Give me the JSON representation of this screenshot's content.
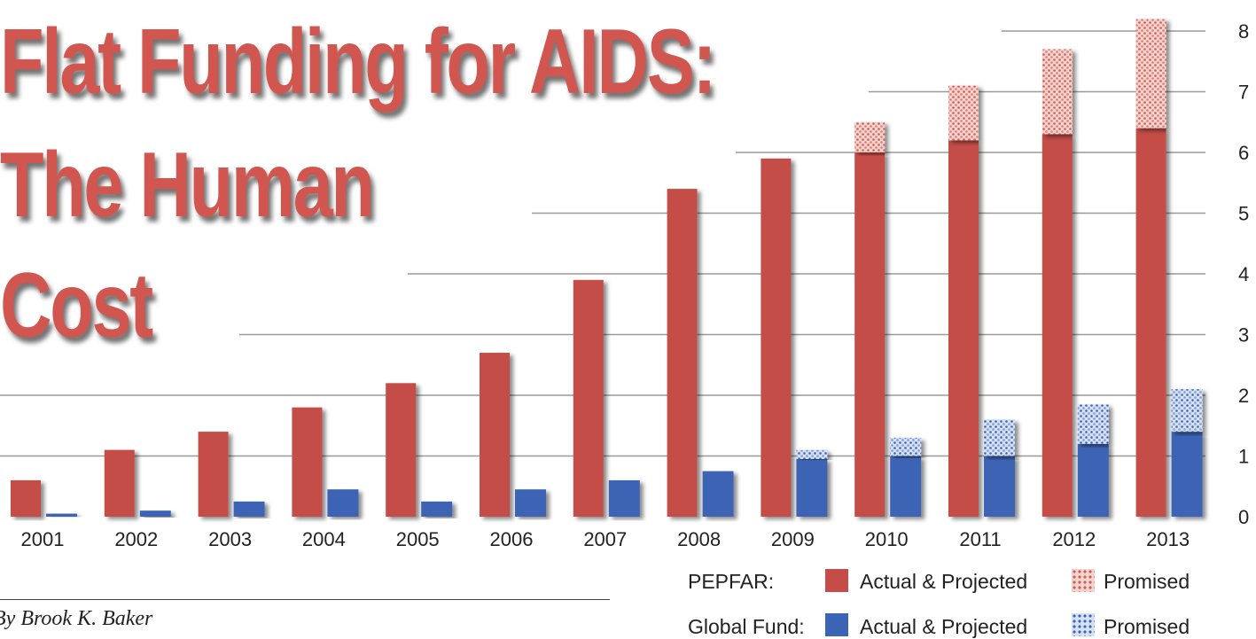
{
  "title": {
    "lines": [
      "Flat Funding for AIDS:",
      "The Human",
      "Cost"
    ]
  },
  "byline": "By Brook K. Baker",
  "colors": {
    "pepfar_actual": "#c44d47",
    "pepfar_promised": "#e07b73",
    "globalfund_actual": "#3c64b4",
    "globalfund_promised": "#6c8fd2",
    "grid": "#9a9a9a",
    "title": "#d0564f"
  },
  "legend": {
    "pepfar_label": "PEPFAR:",
    "globalfund_label": "Global Fund:",
    "actual_label": "Actual & Projected",
    "promised_label": "Promised"
  },
  "chart_data": {
    "type": "bar",
    "categories": [
      "2001",
      "2002",
      "2003",
      "2004",
      "2005",
      "2006",
      "2007",
      "2008",
      "2009",
      "2010",
      "2011",
      "2012",
      "2013"
    ],
    "y_ticks": [
      "0",
      "1",
      "2",
      "3",
      "4",
      "5",
      "6",
      "7",
      "8"
    ],
    "ylim": [
      0,
      8
    ],
    "grid": true,
    "legend_placement": "bottom-right",
    "series": [
      {
        "name": "PEPFAR: Actual & Projected",
        "group": "pepfar",
        "pattern": "solid",
        "values": [
          0.6,
          1.1,
          1.4,
          1.8,
          2.2,
          2.7,
          3.9,
          5.4,
          5.9,
          6.0,
          6.2,
          6.3,
          6.4
        ]
      },
      {
        "name": "PEPFAR: Promised",
        "group": "pepfar",
        "pattern": "dotted",
        "values": [
          0,
          0,
          0,
          0,
          0,
          0,
          0,
          0,
          0,
          0.5,
          0.9,
          1.4,
          1.8
        ]
      },
      {
        "name": "Global Fund: Actual & Projected",
        "group": "globalfund",
        "pattern": "solid",
        "values": [
          0.05,
          0.1,
          0.25,
          0.45,
          0.25,
          0.45,
          0.6,
          0.75,
          0.95,
          1.0,
          1.0,
          1.2,
          1.4
        ]
      },
      {
        "name": "Global Fund: Promised",
        "group": "globalfund",
        "pattern": "dotted",
        "values": [
          0,
          0,
          0,
          0,
          0,
          0,
          0,
          0,
          0.15,
          0.3,
          0.6,
          0.65,
          0.7
        ]
      }
    ]
  }
}
